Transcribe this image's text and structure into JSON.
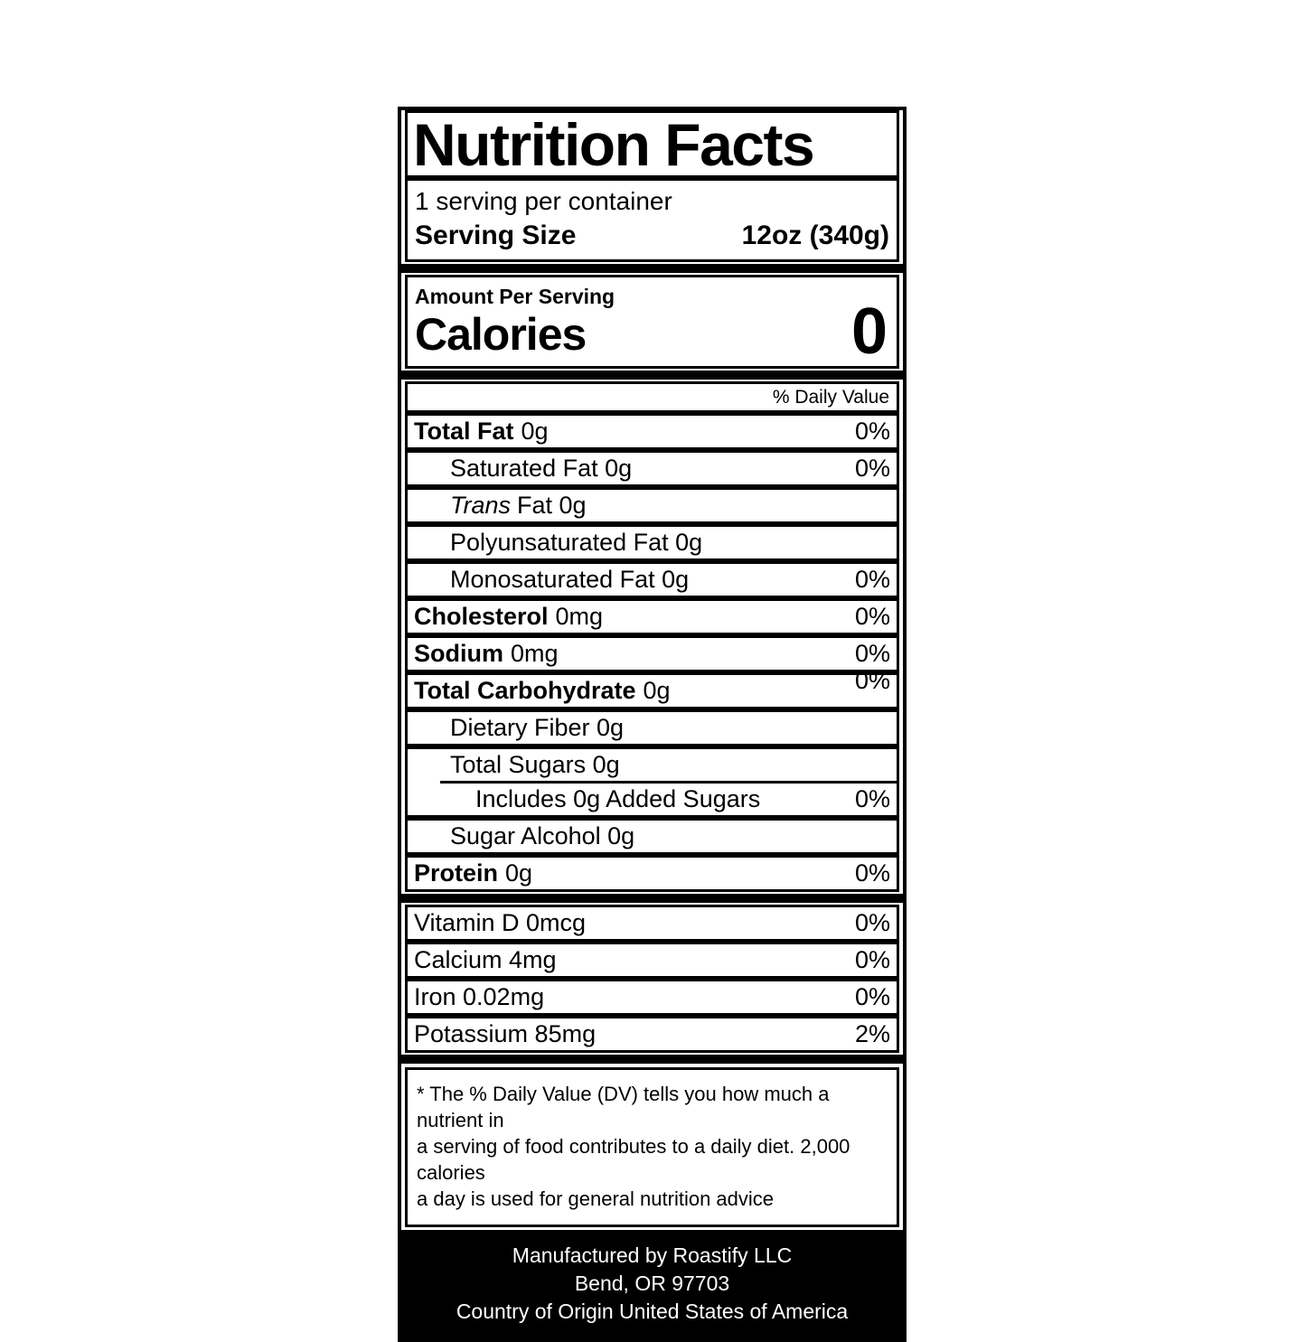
{
  "label": {
    "title": "Nutrition Facts",
    "servings_per_container": "1 serving per container",
    "serving_size_label": "Serving Size",
    "serving_size_value": "12oz (340g)",
    "amount_per_serving": "Amount Per Serving",
    "calories_label": "Calories",
    "calories_value": "0",
    "daily_value_header": "% Daily Value",
    "colors": {
      "ink": "#000000",
      "paper": "#ffffff"
    },
    "nutrients": [
      {
        "name": "Total Fat",
        "amount": "0g",
        "dv": "0%"
      },
      {
        "name": "Saturated Fat 0g",
        "dv": "0%"
      },
      {
        "name": "Trans",
        "amount": "Fat 0g",
        "dv": ""
      },
      {
        "name": "Polyunsaturated Fat 0g",
        "dv": ""
      },
      {
        "name": "Monosaturated Fat 0g",
        "dv": "0%"
      },
      {
        "name": "Cholesterol",
        "amount": "0mg",
        "dv": "0%"
      },
      {
        "name": "Sodium",
        "amount": "0mg",
        "dv": "0%"
      },
      {
        "name": "Total Carbohydrate",
        "amount": "0g",
        "dv": "0%"
      },
      {
        "name": "Dietary Fiber 0g",
        "dv": ""
      },
      {
        "name": "Total Sugars 0g",
        "dv": ""
      },
      {
        "name": "Includes 0g Added Sugars",
        "dv": "0%"
      },
      {
        "name": "Sugar Alcohol 0g",
        "dv": ""
      },
      {
        "name": "Protein",
        "amount": "0g",
        "dv": "0%"
      }
    ],
    "micronutrients": [
      {
        "name": "Vitamin D 0mcg",
        "dv": "0%"
      },
      {
        "name": "Calcium 4mg",
        "dv": "0%"
      },
      {
        "name": "Iron 0.02mg",
        "dv": "0%"
      },
      {
        "name": "Potassium 85mg",
        "dv": "2%"
      }
    ],
    "footnote_lines": [
      "* The % Daily Value (DV) tells you how much a nutrient in",
      "a serving of food contributes to a daily diet. 2,000 calories",
      "a day is used for general nutrition advice"
    ],
    "footer_lines": [
      "Manufactured by Roastify LLC",
      "Bend, OR 97703",
      "Country of Origin United States of America"
    ]
  }
}
